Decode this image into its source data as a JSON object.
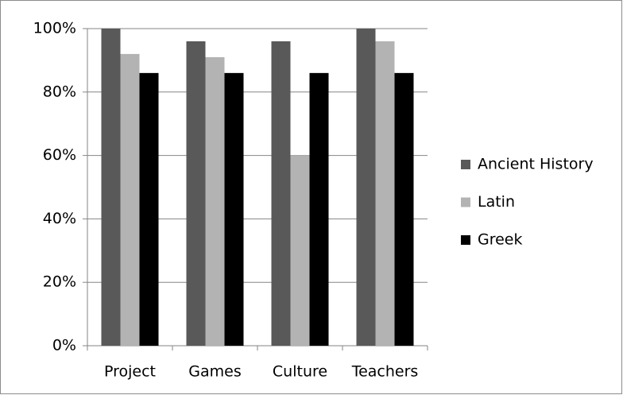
{
  "chart_data": {
    "type": "bar",
    "categories": [
      "Project",
      "Games",
      "Culture",
      "Teachers"
    ],
    "series": [
      {
        "name": "Ancient History",
        "color": "#595959",
        "values": [
          100,
          96,
          96,
          100
        ]
      },
      {
        "name": "Latin",
        "color": "#b3b3b3",
        "values": [
          92,
          91,
          60,
          96
        ]
      },
      {
        "name": "Greek",
        "color": "#000000",
        "values": [
          86,
          86,
          86,
          86
        ]
      }
    ],
    "ylim": [
      0,
      100
    ],
    "yticks": [
      {
        "value": 0,
        "label": "0%"
      },
      {
        "value": 20,
        "label": "20%"
      },
      {
        "value": 40,
        "label": "40%"
      },
      {
        "value": 60,
        "label": "60%"
      },
      {
        "value": 80,
        "label": "80%"
      },
      {
        "value": 100,
        "label": "100%"
      }
    ],
    "grid": true,
    "legend": "right"
  }
}
